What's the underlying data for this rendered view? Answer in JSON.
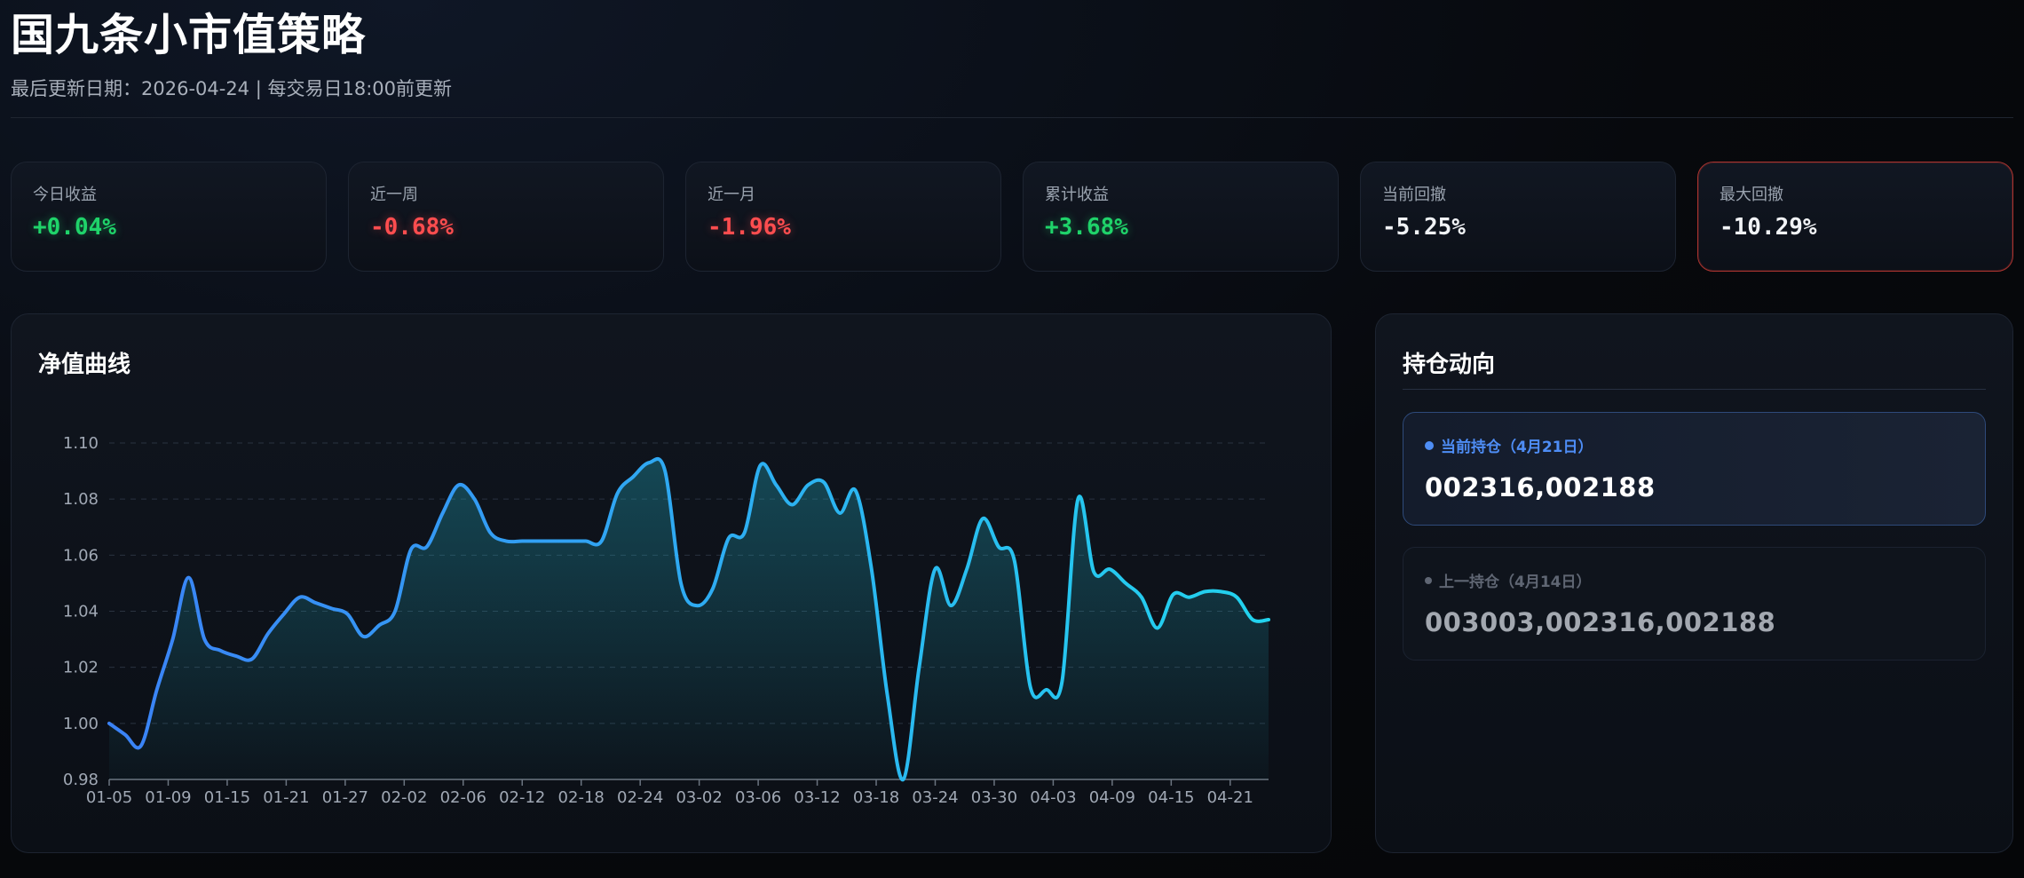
{
  "header": {
    "title": "国九条小市值策略",
    "subtitle": "最后更新日期：2026-04-24 | 每交易日18:00前更新"
  },
  "stats": [
    {
      "label": "今日收益",
      "value": "+0.04%",
      "tone": "pos"
    },
    {
      "label": "近一周",
      "value": "-0.68%",
      "tone": "neg"
    },
    {
      "label": "近一月",
      "value": "-1.96%",
      "tone": "neg"
    },
    {
      "label": "累计收益",
      "value": "+3.68%",
      "tone": "pos"
    },
    {
      "label": "当前回撤",
      "value": "-5.25%",
      "tone": "neu"
    },
    {
      "label": "最大回撤",
      "value": "-10.29%",
      "tone": "neu"
    }
  ],
  "chart_panel": {
    "title": "净值曲线"
  },
  "holdings": {
    "title": "持仓动向",
    "current": {
      "label": "当前持仓（4月21日）",
      "codes": "002316,002188"
    },
    "previous": {
      "label": "上一持仓（4月14日）",
      "codes": "003003,002316,002188"
    }
  },
  "colors": {
    "positive": "#1fd36a",
    "negative": "#ff4d4f",
    "line_start": "#3b82f6",
    "line_end": "#22d3ee",
    "danger_border": "#a8332f"
  },
  "chart_data": {
    "type": "area",
    "title": "",
    "xlabel": "",
    "ylabel": "",
    "ylim": [
      0.98,
      1.1
    ],
    "yticks": [
      "0.98",
      "1.00",
      "1.02",
      "1.04",
      "1.06",
      "1.08",
      "1.10"
    ],
    "xticks": [
      "01-05",
      "01-09",
      "01-15",
      "01-21",
      "01-27",
      "02-02",
      "02-06",
      "02-12",
      "02-18",
      "02-24",
      "03-02",
      "03-06",
      "03-12",
      "03-18",
      "03-24",
      "03-30",
      "04-03",
      "04-09",
      "04-15",
      "04-21"
    ],
    "grid": true,
    "series": [
      {
        "values": [
          1.0,
          0.996,
          0.992,
          1.012,
          1.03,
          1.052,
          1.03,
          1.026,
          1.024,
          1.023,
          1.032,
          1.039,
          1.045,
          1.043,
          1.041,
          1.039,
          1.031,
          1.035,
          1.04,
          1.062,
          1.063,
          1.075,
          1.085,
          1.08,
          1.068,
          1.065,
          1.065,
          1.065,
          1.065,
          1.065,
          1.065,
          1.065,
          1.082,
          1.088,
          1.093,
          1.09,
          1.05,
          1.042,
          1.048,
          1.066,
          1.068,
          1.092,
          1.085,
          1.078,
          1.085,
          1.086,
          1.075,
          1.083,
          1.055,
          1.01,
          0.98,
          1.02,
          1.055,
          1.042,
          1.055,
          1.073,
          1.063,
          1.058,
          1.013,
          1.012,
          1.015,
          1.08,
          1.054,
          1.055,
          1.05,
          1.045,
          1.034,
          1.046,
          1.045,
          1.047,
          1.047,
          1.045,
          1.037,
          1.037
        ]
      }
    ]
  }
}
